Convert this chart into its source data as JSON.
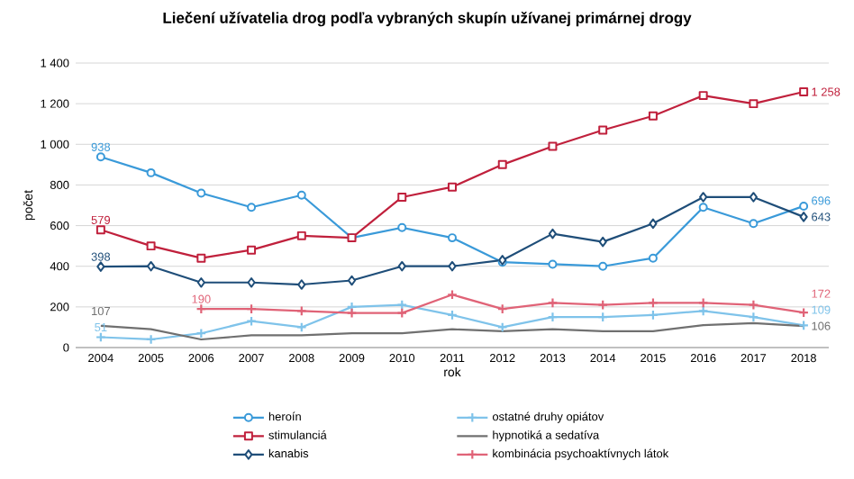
{
  "chart_data": {
    "type": "line",
    "title": "Liečení užívatelia drog podľa vybraných  skupín užívanej primárnej drogy",
    "xlabel": "rok",
    "ylabel": "počet",
    "categories": [
      "2004",
      "2005",
      "2006",
      "2007",
      "2008",
      "2009",
      "2010",
      "2011",
      "2012",
      "2013",
      "2014",
      "2015",
      "2016",
      "2017",
      "2018"
    ],
    "ylim": [
      0,
      1400
    ],
    "yticks": [
      0,
      200,
      400,
      600,
      800,
      {
        "value": 1000,
        "label": "1 000"
      },
      {
        "value": 1200,
        "label": "1 200"
      },
      {
        "value": 1400,
        "label": "1 400"
      }
    ],
    "grid": "y",
    "legend": "bottom",
    "series": [
      {
        "name": "heroín",
        "color": "#3a9ad9",
        "marker": "circle",
        "values": [
          938,
          860,
          760,
          690,
          750,
          540,
          590,
          540,
          420,
          410,
          400,
          440,
          690,
          610,
          696
        ],
        "value_labels": [
          "938",
          null,
          null,
          null,
          null,
          null,
          null,
          null,
          null,
          null,
          null,
          null,
          null,
          null,
          "696"
        ]
      },
      {
        "name": "stimulanciá",
        "color": "#c0203c",
        "marker": "square",
        "values": [
          579,
          500,
          440,
          480,
          550,
          540,
          740,
          790,
          900,
          990,
          1070,
          1140,
          1240,
          1200,
          1258
        ],
        "value_labels": [
          "579",
          null,
          null,
          null,
          null,
          null,
          null,
          null,
          null,
          null,
          null,
          null,
          null,
          null,
          "1 258"
        ]
      },
      {
        "name": "kanabis",
        "color": "#1f4e79",
        "marker": "diamond",
        "values": [
          398,
          400,
          320,
          320,
          310,
          330,
          400,
          400,
          430,
          560,
          520,
          610,
          740,
          740,
          643
        ],
        "value_labels": [
          "398",
          null,
          null,
          null,
          null,
          null,
          null,
          null,
          null,
          null,
          null,
          null,
          null,
          null,
          "643"
        ]
      },
      {
        "name": "ostatné druhy opiátov",
        "color": "#7fc3ea",
        "marker": "cross",
        "values": [
          51,
          40,
          70,
          130,
          100,
          200,
          210,
          160,
          100,
          150,
          150,
          160,
          180,
          150,
          109
        ],
        "value_labels": [
          "51",
          null,
          null,
          null,
          null,
          null,
          null,
          null,
          null,
          null,
          null,
          null,
          null,
          null,
          "109"
        ]
      },
      {
        "name": "hypnotiká a sedatíva",
        "color": "#707070",
        "marker": "none",
        "values": [
          107,
          90,
          40,
          60,
          60,
          70,
          70,
          90,
          80,
          90,
          80,
          80,
          110,
          120,
          106
        ],
        "value_labels": [
          "107",
          null,
          null,
          null,
          null,
          null,
          null,
          null,
          null,
          null,
          null,
          null,
          null,
          null,
          "106"
        ]
      },
      {
        "name": "kombinácia psychoaktívnych látok",
        "color": "#e06377",
        "marker": "cross",
        "values": [
          null,
          null,
          190,
          190,
          180,
          170,
          170,
          260,
          190,
          220,
          210,
          220,
          220,
          210,
          172
        ],
        "value_labels": [
          null,
          null,
          "190",
          null,
          null,
          null,
          null,
          null,
          null,
          null,
          null,
          null,
          null,
          null,
          "172"
        ]
      }
    ]
  }
}
